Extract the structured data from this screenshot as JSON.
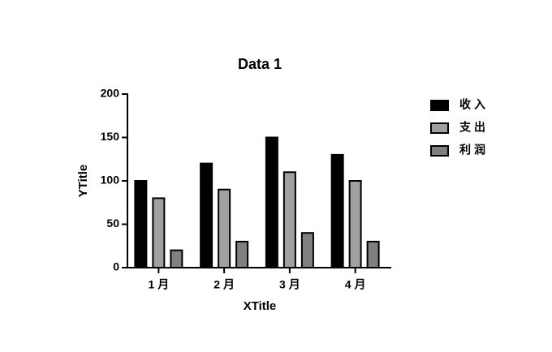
{
  "chart_data": {
    "type": "bar",
    "title": "Data 1",
    "x_label": "XTitle",
    "y_label": "YTitle",
    "categories": [
      "1 月",
      "2 月",
      "3 月",
      "4 月"
    ],
    "series": [
      {
        "name": "收入",
        "color": "#000000",
        "values": [
          100,
          120,
          150,
          130
        ]
      },
      {
        "name": "支出",
        "color": "#a0a0a0",
        "values": [
          80,
          90,
          110,
          100
        ]
      },
      {
        "name": "利润",
        "color": "#808080",
        "values": [
          20,
          30,
          40,
          30
        ]
      }
    ],
    "ylim": [
      0,
      200
    ],
    "yticks": [
      0,
      50,
      100,
      150,
      200
    ],
    "grid": false,
    "legend": "right"
  }
}
